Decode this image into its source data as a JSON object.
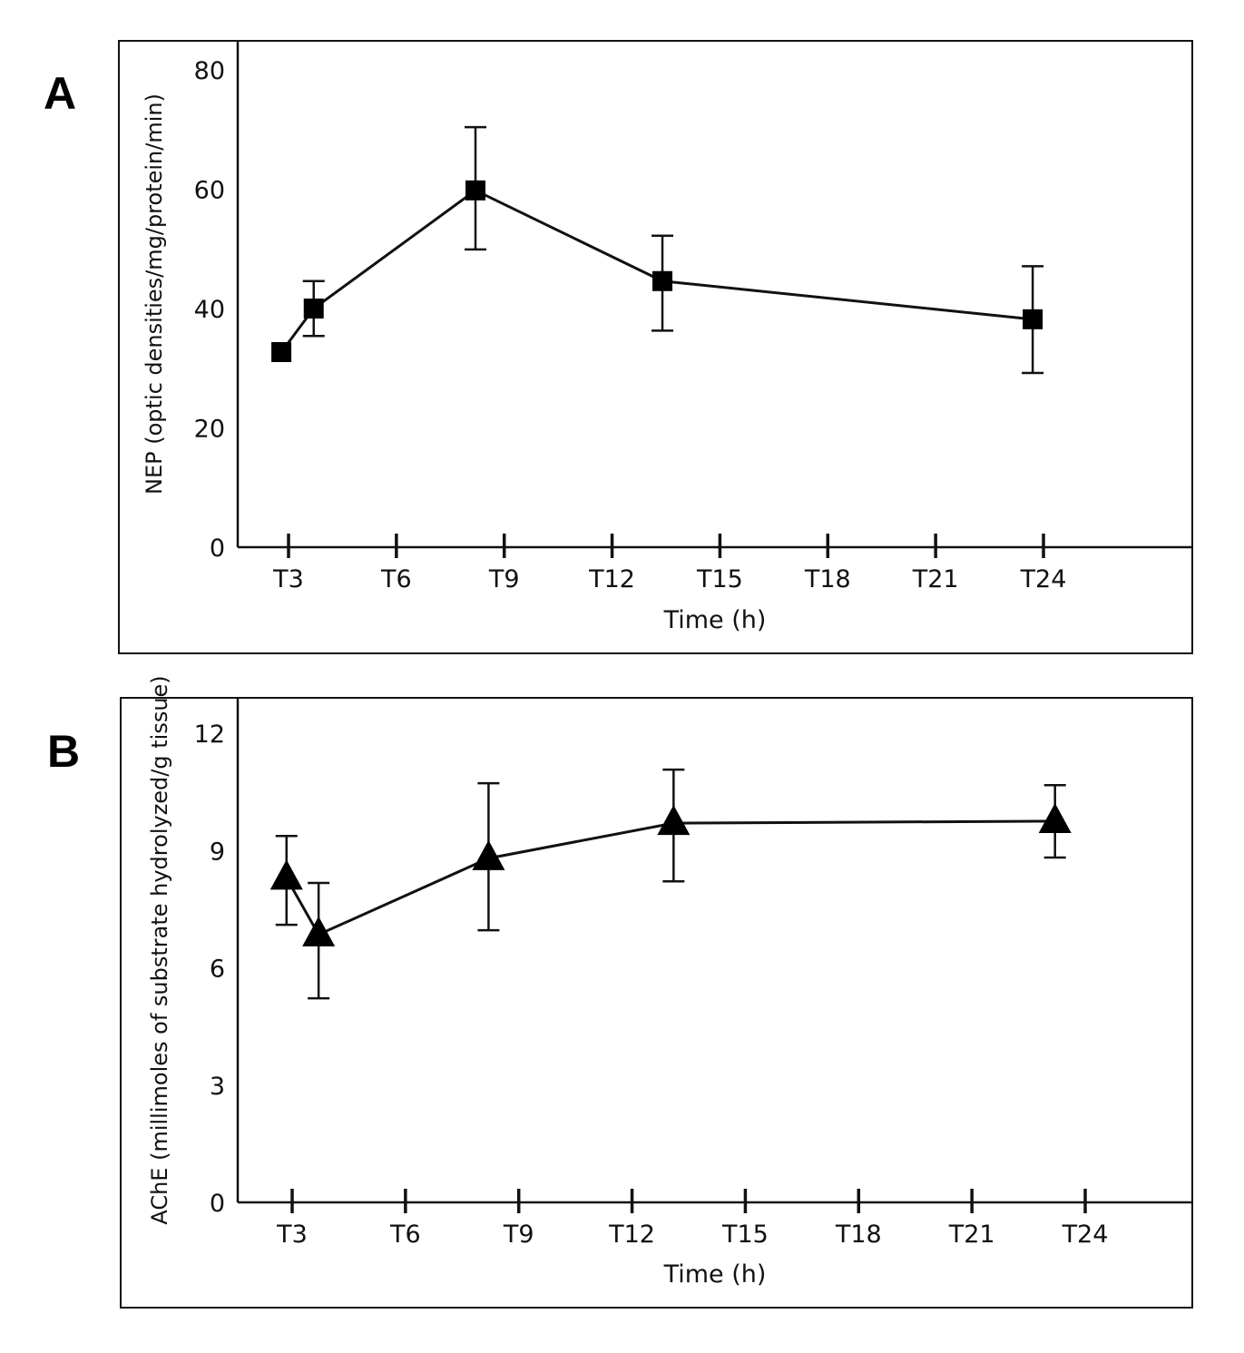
{
  "chart_data": [
    {
      "panel": "A",
      "type": "line",
      "xlabel": "Time (h)",
      "ylabel": "NEP (optic densities/mg/protein/min)",
      "ylim": [
        0,
        80
      ],
      "yticks": [
        "0",
        "20",
        "40",
        "60",
        "80"
      ],
      "xticks": [
        "T3",
        "T6",
        "T9",
        "T12",
        "T15",
        "T18",
        "T21",
        "T24"
      ],
      "xtick_values": [
        3,
        6,
        9,
        12,
        15,
        18,
        21,
        24
      ],
      "marker": "square",
      "grid": false,
      "series": [
        {
          "name": "NEP",
          "x": [
            2.8,
            3.7,
            8.2,
            13.4,
            23.7
          ],
          "y": [
            32.7,
            40,
            59.8,
            44.6,
            38.2
          ],
          "err_high": [
            null,
            44.6,
            70.4,
            52.2,
            47.1
          ],
          "err_low": [
            null,
            35.4,
            49.9,
            36.3,
            29.2
          ]
        }
      ]
    },
    {
      "panel": "B",
      "type": "line",
      "xlabel": "Time (h)",
      "ylabel": "AChE (millimoles of substrate hydrolyzed/g tissue)",
      "ylim": [
        0,
        12
      ],
      "yticks": [
        "0",
        "3",
        "6",
        "9",
        "12"
      ],
      "xticks": [
        "T3",
        "T6",
        "T9",
        "T12",
        "T15",
        "T18",
        "T21",
        "T24"
      ],
      "xtick_values": [
        3,
        6,
        9,
        12,
        15,
        18,
        21,
        24
      ],
      "marker": "triangle",
      "grid": false,
      "series": [
        {
          "name": "AChE",
          "x": [
            2.85,
            3.7,
            8.2,
            13.1,
            23.2
          ],
          "y": [
            8.3,
            6.85,
            8.8,
            9.7,
            9.75
          ],
          "err_high": [
            9.37,
            8.17,
            10.72,
            11.07,
            10.67
          ],
          "err_low": [
            7.1,
            5.22,
            6.96,
            8.21,
            8.82
          ]
        }
      ]
    }
  ]
}
